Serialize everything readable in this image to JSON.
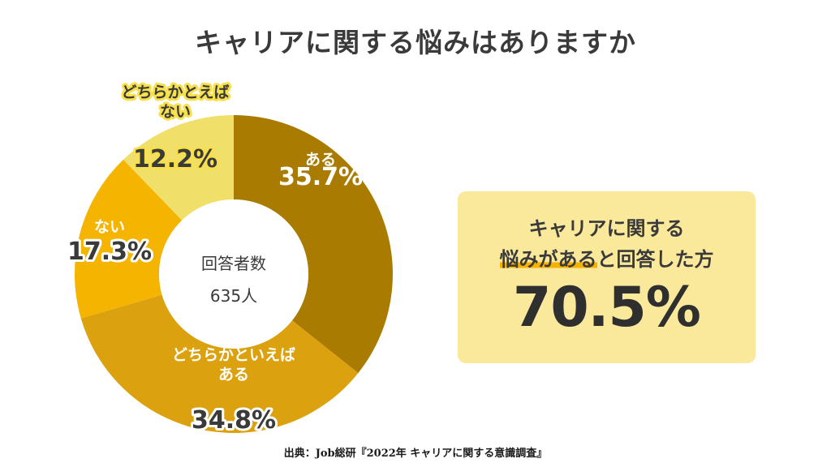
{
  "title": "キャリアに関する悩みはありますか",
  "chart_data": {
    "type": "pie",
    "variant": "donut",
    "title": "キャリアに関する悩みはありますか",
    "center_label": "回答者数",
    "center_value": "635人",
    "slices": [
      {
        "label_lines": [
          "ある"
        ],
        "value": 35.7,
        "display": "35.7%",
        "color": "#a97b00"
      },
      {
        "label_lines": [
          "どちらかといえば",
          "ある"
        ],
        "value": 34.8,
        "display": "34.8%",
        "color": "#dba10e"
      },
      {
        "label_lines": [
          "ない"
        ],
        "value": 17.3,
        "display": "17.3%",
        "color": "#f5b400"
      },
      {
        "label_lines": [
          "どちらかとえば",
          "ない"
        ],
        "value": 12.2,
        "display": "12.2%",
        "color": "#f0e06a"
      }
    ]
  },
  "highlight": {
    "line1": "キャリアに関する",
    "line2_marked": "悩みがある",
    "line2_rest": "と回答した方",
    "value": "70.5%"
  },
  "source": "出典：Job総研『2022年 キャリアに関する意識調査』"
}
